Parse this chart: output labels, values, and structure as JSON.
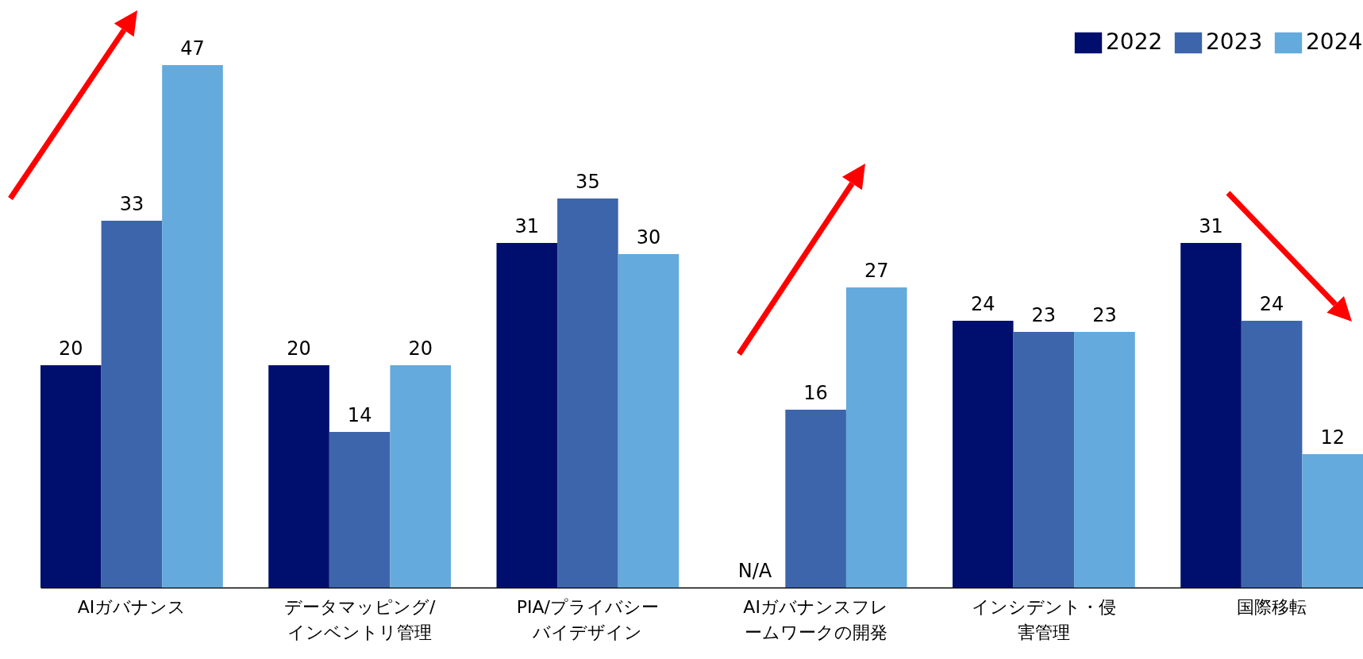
{
  "chart_data": {
    "type": "bar",
    "categories": [
      "AIガバナンス",
      "データマッピング/インベントリ管理",
      "PIA/プライバシーバイデザイン",
      "AIガバナンスフレームワークの開発",
      "インシデント・侵害管理",
      "国際移転"
    ],
    "series": [
      {
        "name": "2022",
        "color": "#000f6e",
        "values": [
          20,
          20,
          31,
          null,
          24,
          31
        ],
        "value_labels": [
          "20",
          "20",
          "31",
          "N/A",
          "24",
          "31"
        ]
      },
      {
        "name": "2023",
        "color": "#3d65ab",
        "values": [
          33,
          14,
          35,
          16,
          23,
          24
        ],
        "value_labels": [
          "33",
          "14",
          "35",
          "16",
          "23",
          "24"
        ]
      },
      {
        "name": "2024",
        "color": "#64aadc",
        "values": [
          47,
          20,
          30,
          27,
          23,
          12
        ],
        "value_labels": [
          "47",
          "20",
          "30",
          "27",
          "23",
          "12"
        ]
      }
    ],
    "legend": "top right",
    "grid": false
  }
}
